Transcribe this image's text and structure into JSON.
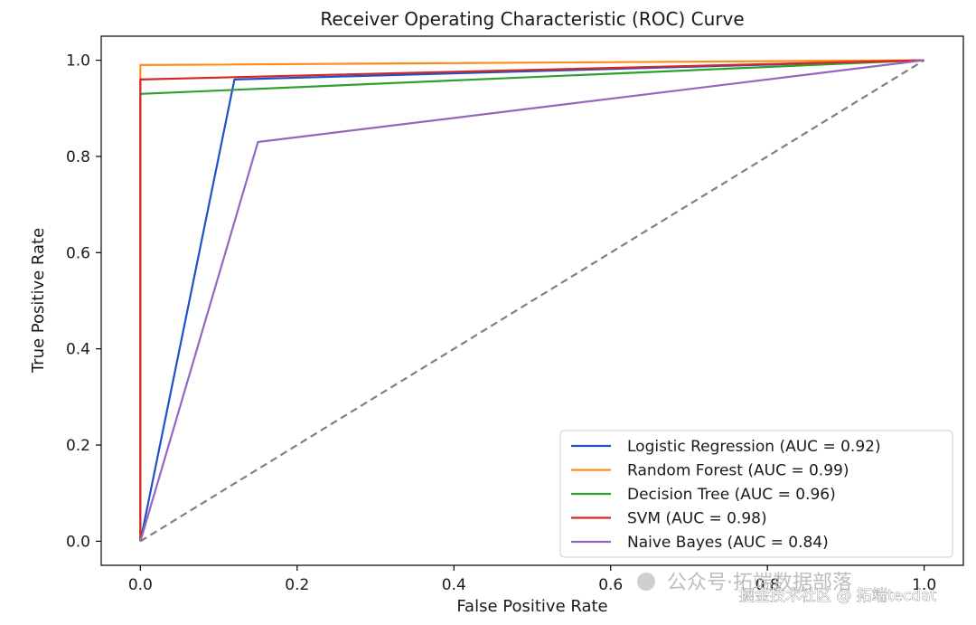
{
  "chart_data": {
    "type": "line",
    "title": "Receiver Operating Characteristic (ROC) Curve",
    "xlabel": "False Positive Rate",
    "ylabel": "True Positive Rate",
    "xlim": [
      -0.05,
      1.05
    ],
    "ylim": [
      -0.05,
      1.05
    ],
    "xticks": [
      0.0,
      0.2,
      0.4,
      0.6,
      0.8,
      1.0
    ],
    "xtick_labels": [
      "0.0",
      "0.2",
      "0.4",
      "0.6",
      "0.8",
      "1.0"
    ],
    "yticks": [
      0.0,
      0.2,
      0.4,
      0.6,
      0.8,
      1.0
    ],
    "ytick_labels": [
      "0.0",
      "0.2",
      "0.4",
      "0.6",
      "0.8",
      "1.0"
    ],
    "grid": false,
    "legend_position": "lower-right",
    "series": [
      {
        "name": "Logistic Regression (AUC = 0.92)",
        "color": "#1f50c8",
        "x": [
          0.0,
          0.12,
          1.0
        ],
        "y": [
          0.0,
          0.96,
          1.0
        ]
      },
      {
        "name": "Random Forest (AUC = 0.99)",
        "color": "#ff8c1a",
        "x": [
          0.0,
          0.0,
          1.0
        ],
        "y": [
          0.0,
          0.99,
          1.0
        ]
      },
      {
        "name": "Decision Tree (AUC = 0.96)",
        "color": "#2ca02c",
        "x": [
          0.0,
          0.0,
          1.0
        ],
        "y": [
          0.0,
          0.93,
          1.0
        ]
      },
      {
        "name": "SVM (AUC = 0.98)",
        "color": "#d62728",
        "x": [
          0.0,
          0.0,
          1.0
        ],
        "y": [
          0.0,
          0.96,
          1.0
        ]
      },
      {
        "name": "Naive Bayes (AUC = 0.84)",
        "color": "#9467bd",
        "x": [
          0.0,
          0.15,
          1.0
        ],
        "y": [
          0.0,
          0.83,
          1.0
        ]
      }
    ],
    "reference_line": {
      "name": "chance-diagonal",
      "color": "#808080",
      "x": [
        0.0,
        1.0
      ],
      "y": [
        0.0,
        1.0
      ],
      "style": "dashed"
    }
  },
  "watermark": {
    "line1": "公众号·拓端数据部落",
    "line2": "掘金技术社区 @ 拓端tecdat"
  }
}
